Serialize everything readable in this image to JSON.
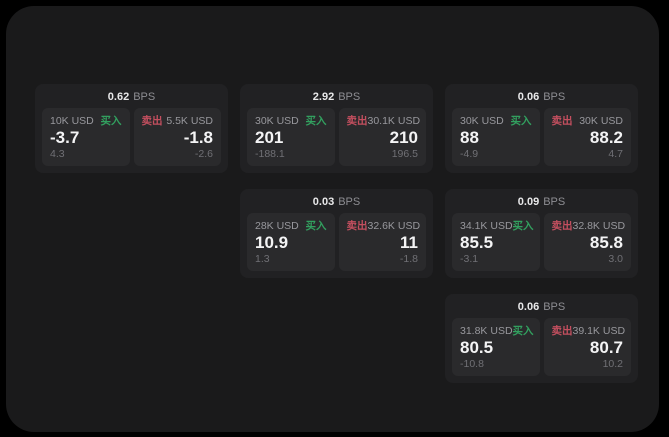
{
  "panel": {
    "bps_suffix": "BPS",
    "buy_label": "买入",
    "sell_label": "卖出",
    "colors": {
      "buy_green": "#32a05f",
      "sell_red": "#c44f5f",
      "panel_bg": "#1a1a1b",
      "card_bg": "#212123",
      "subcard_bg": "#2a2a2c"
    },
    "cards": [
      {
        "row": 1,
        "col": 1,
        "bps": "0.62",
        "buy": {
          "amount": "10K USD",
          "value": "-3.7",
          "sub": "4.3"
        },
        "sell": {
          "amount": "5.5K USD",
          "value": "-1.8",
          "sub": "-2.6"
        }
      },
      {
        "row": 1,
        "col": 2,
        "bps": "2.92",
        "buy": {
          "amount": "30K USD",
          "value": "201",
          "sub": "-188.1"
        },
        "sell": {
          "amount": "30.1K USD",
          "value": "210",
          "sub": "196.5"
        }
      },
      {
        "row": 1,
        "col": 3,
        "bps": "0.06",
        "buy": {
          "amount": "30K USD",
          "value": "88",
          "sub": "-4.9"
        },
        "sell": {
          "amount": "30K USD",
          "value": "88.2",
          "sub": "4.7"
        }
      },
      {
        "row": 2,
        "col": 2,
        "bps": "0.03",
        "buy": {
          "amount": "28K USD",
          "value": "10.9",
          "sub": "1.3"
        },
        "sell": {
          "amount": "32.6K USD",
          "value": "11",
          "sub": "-1.8"
        }
      },
      {
        "row": 2,
        "col": 3,
        "bps": "0.09",
        "buy": {
          "amount": "34.1K USD",
          "value": "85.5",
          "sub": "-3.1"
        },
        "sell": {
          "amount": "32.8K USD",
          "value": "85.8",
          "sub": "3.0"
        }
      },
      {
        "row": 3,
        "col": 3,
        "bps": "0.06",
        "buy": {
          "amount": "31.8K USD",
          "value": "80.5",
          "sub": "-10.8"
        },
        "sell": {
          "amount": "39.1K USD",
          "value": "80.7",
          "sub": "10.2"
        }
      }
    ]
  }
}
